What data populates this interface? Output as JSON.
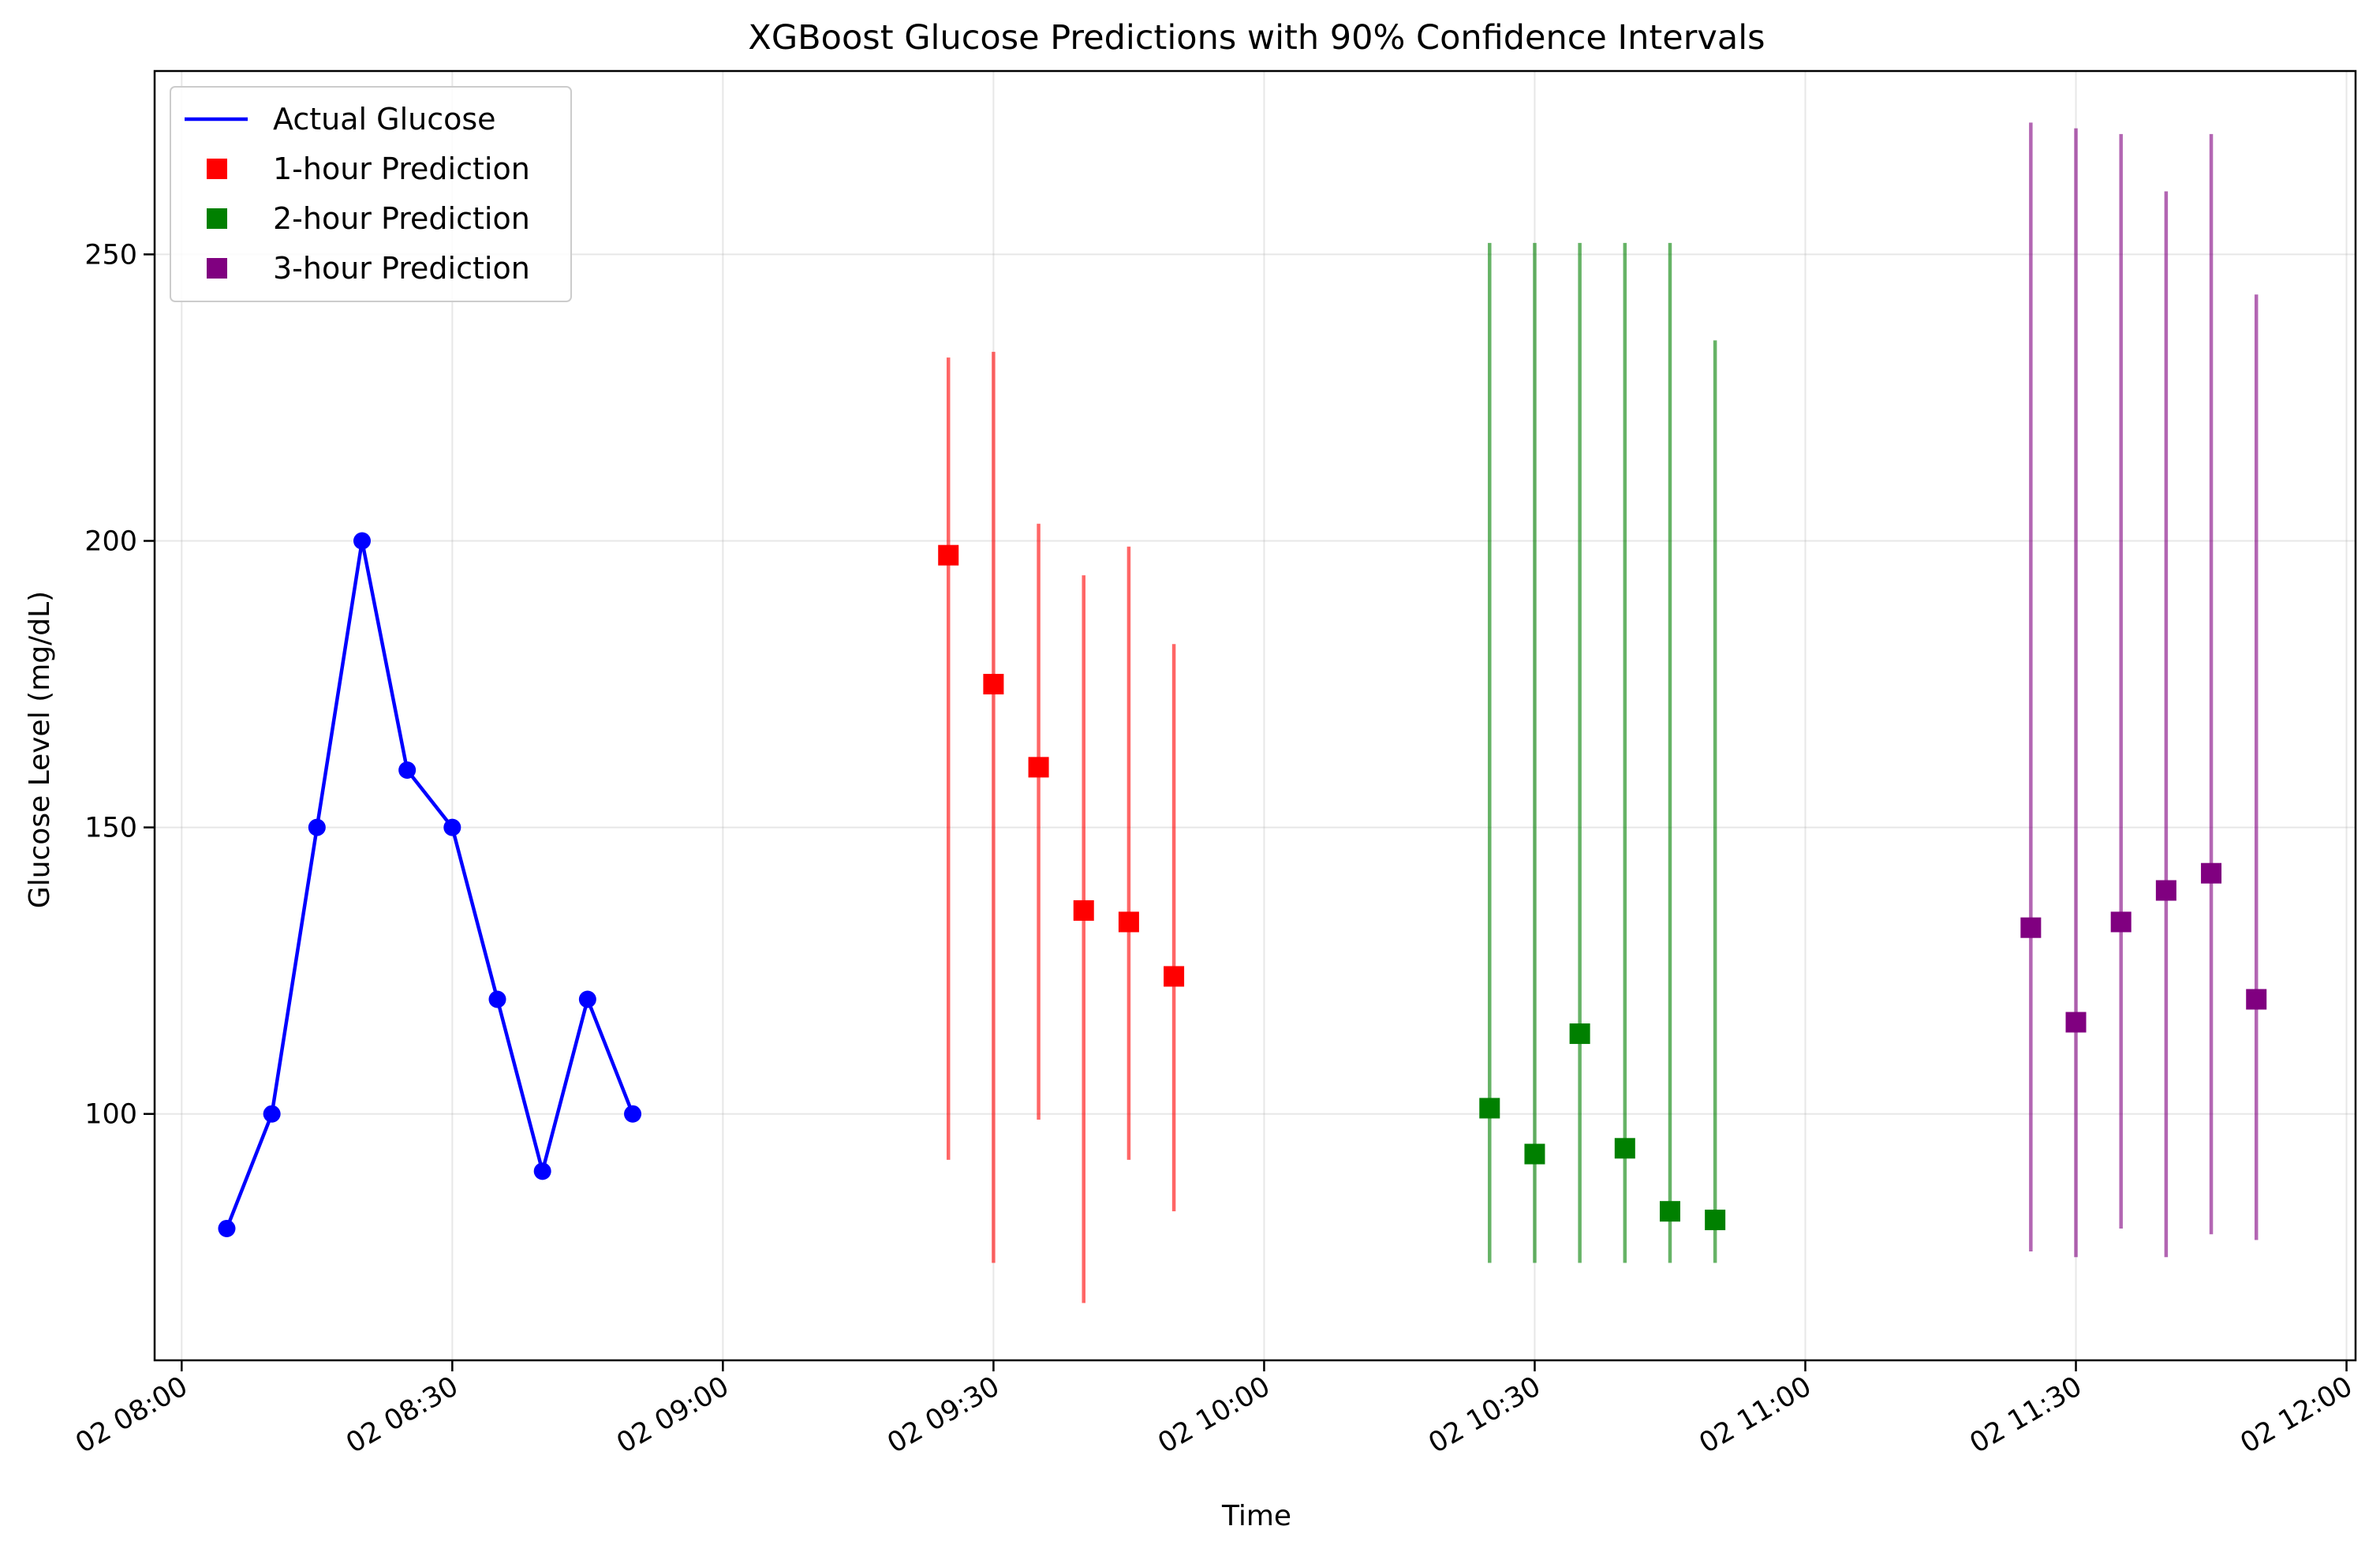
{
  "chart_data": {
    "type": "line",
    "title": "XGBoost Glucose Predictions with 90% Confidence Intervals",
    "xlabel": "Time",
    "ylabel": "Glucose Level (mg/dL)",
    "xlim": [
      "02 07:57",
      "02 12:01"
    ],
    "ylim": [
      57,
      282
    ],
    "grid": true,
    "legend_position": "top-left",
    "x_ticks": [
      "02 08:00",
      "02 08:30",
      "02 09:00",
      "02 09:30",
      "02 10:00",
      "02 10:30",
      "02 11:00",
      "02 11:30",
      "02 12:00"
    ],
    "y_ticks": [
      100,
      150,
      200,
      250
    ],
    "series": [
      {
        "name": "Actual Glucose",
        "kind": "line",
        "color": "#0000ff",
        "x": [
          "02 08:05",
          "02 08:10",
          "02 08:15",
          "02 08:20",
          "02 08:25",
          "02 08:30",
          "02 08:35",
          "02 08:40",
          "02 08:45",
          "02 08:50"
        ],
        "y": [
          80,
          100,
          150,
          200,
          160,
          150,
          120,
          90,
          120,
          100
        ]
      },
      {
        "name": "1-hour Prediction",
        "kind": "errorbar",
        "color": "#ff0000",
        "x": [
          "02 09:25",
          "02 09:30",
          "02 09:35",
          "02 09:40",
          "02 09:45",
          "02 09:50"
        ],
        "y": [
          197.5,
          175,
          160.5,
          135.5,
          133.5,
          124
        ],
        "lower": [
          92,
          74,
          99,
          67,
          92,
          83
        ],
        "upper": [
          232,
          233,
          203,
          194,
          199,
          182
        ]
      },
      {
        "name": "2-hour Prediction",
        "kind": "errorbar",
        "color": "#008000",
        "x": [
          "02 10:25",
          "02 10:30",
          "02 10:35",
          "02 10:40",
          "02 10:45",
          "02 10:50"
        ],
        "y": [
          101,
          93,
          114,
          94,
          83,
          81.5
        ],
        "lower": [
          74,
          74,
          74,
          74,
          74,
          74
        ],
        "upper": [
          252,
          252,
          252,
          252,
          252,
          235
        ]
      },
      {
        "name": "3-hour Prediction",
        "kind": "errorbar",
        "color": "#800080",
        "x": [
          "02 11:25",
          "02 11:30",
          "02 11:35",
          "02 11:40",
          "02 11:45",
          "02 11:50"
        ],
        "y": [
          132.5,
          116,
          133.5,
          139,
          142,
          120
        ],
        "lower": [
          76,
          75,
          80,
          75,
          79,
          78
        ],
        "upper": [
          273,
          272,
          271,
          261,
          271,
          243
        ]
      }
    ]
  }
}
